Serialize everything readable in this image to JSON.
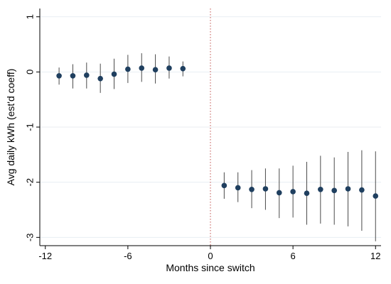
{
  "chart_data": {
    "type": "scatter",
    "title": "",
    "xlabel": "Months since switch",
    "ylabel": "Avg daily kWh (est'd coeff)",
    "xlim": [
      -12.4,
      12.4
    ],
    "ylim": [
      -3.15,
      1.15
    ],
    "xticks": [
      -12,
      -6,
      0,
      6,
      12
    ],
    "xtick_labels": [
      "-12",
      "-6",
      "0",
      "6",
      "12"
    ],
    "yticks": [
      1,
      0,
      -1,
      -2,
      -3
    ],
    "ytick_labels": [
      "1",
      "0",
      "-1",
      "-2",
      "-3"
    ],
    "grid": "horizontal",
    "legend": "none",
    "reference_line": {
      "x": 0,
      "style": "dotted",
      "color": "#c0504d"
    },
    "colors": {
      "marker": "#1f3f5f",
      "error_bar": "#4a4a4a",
      "grid": "#e8eef2"
    },
    "series": [
      {
        "x": [
          -11,
          -10,
          -9,
          -8,
          -7,
          -6,
          -5,
          -4,
          -3,
          -2,
          1,
          2,
          3,
          4,
          5,
          6,
          7,
          8,
          9,
          10,
          11,
          12
        ],
        "y": [
          -0.07,
          -0.07,
          -0.06,
          -0.12,
          -0.04,
          0.05,
          0.07,
          0.04,
          0.07,
          0.06,
          -2.06,
          -2.1,
          -2.13,
          -2.12,
          -2.19,
          -2.17,
          -2.2,
          -2.13,
          -2.15,
          -2.12,
          -2.14,
          -2.25
        ],
        "lower": [
          -0.23,
          -0.3,
          -0.3,
          -0.38,
          -0.31,
          -0.2,
          -0.18,
          -0.21,
          -0.12,
          -0.08,
          -2.3,
          -2.36,
          -2.47,
          -2.5,
          -2.65,
          -2.64,
          -2.77,
          -2.75,
          -2.77,
          -2.8,
          -2.88,
          -3.07
        ],
        "upper": [
          0.08,
          0.14,
          0.17,
          0.15,
          0.24,
          0.31,
          0.34,
          0.32,
          0.28,
          0.19,
          -1.82,
          -1.82,
          -1.78,
          -1.75,
          -1.75,
          -1.7,
          -1.63,
          -1.52,
          -1.55,
          -1.45,
          -1.42,
          -1.44
        ]
      }
    ]
  }
}
